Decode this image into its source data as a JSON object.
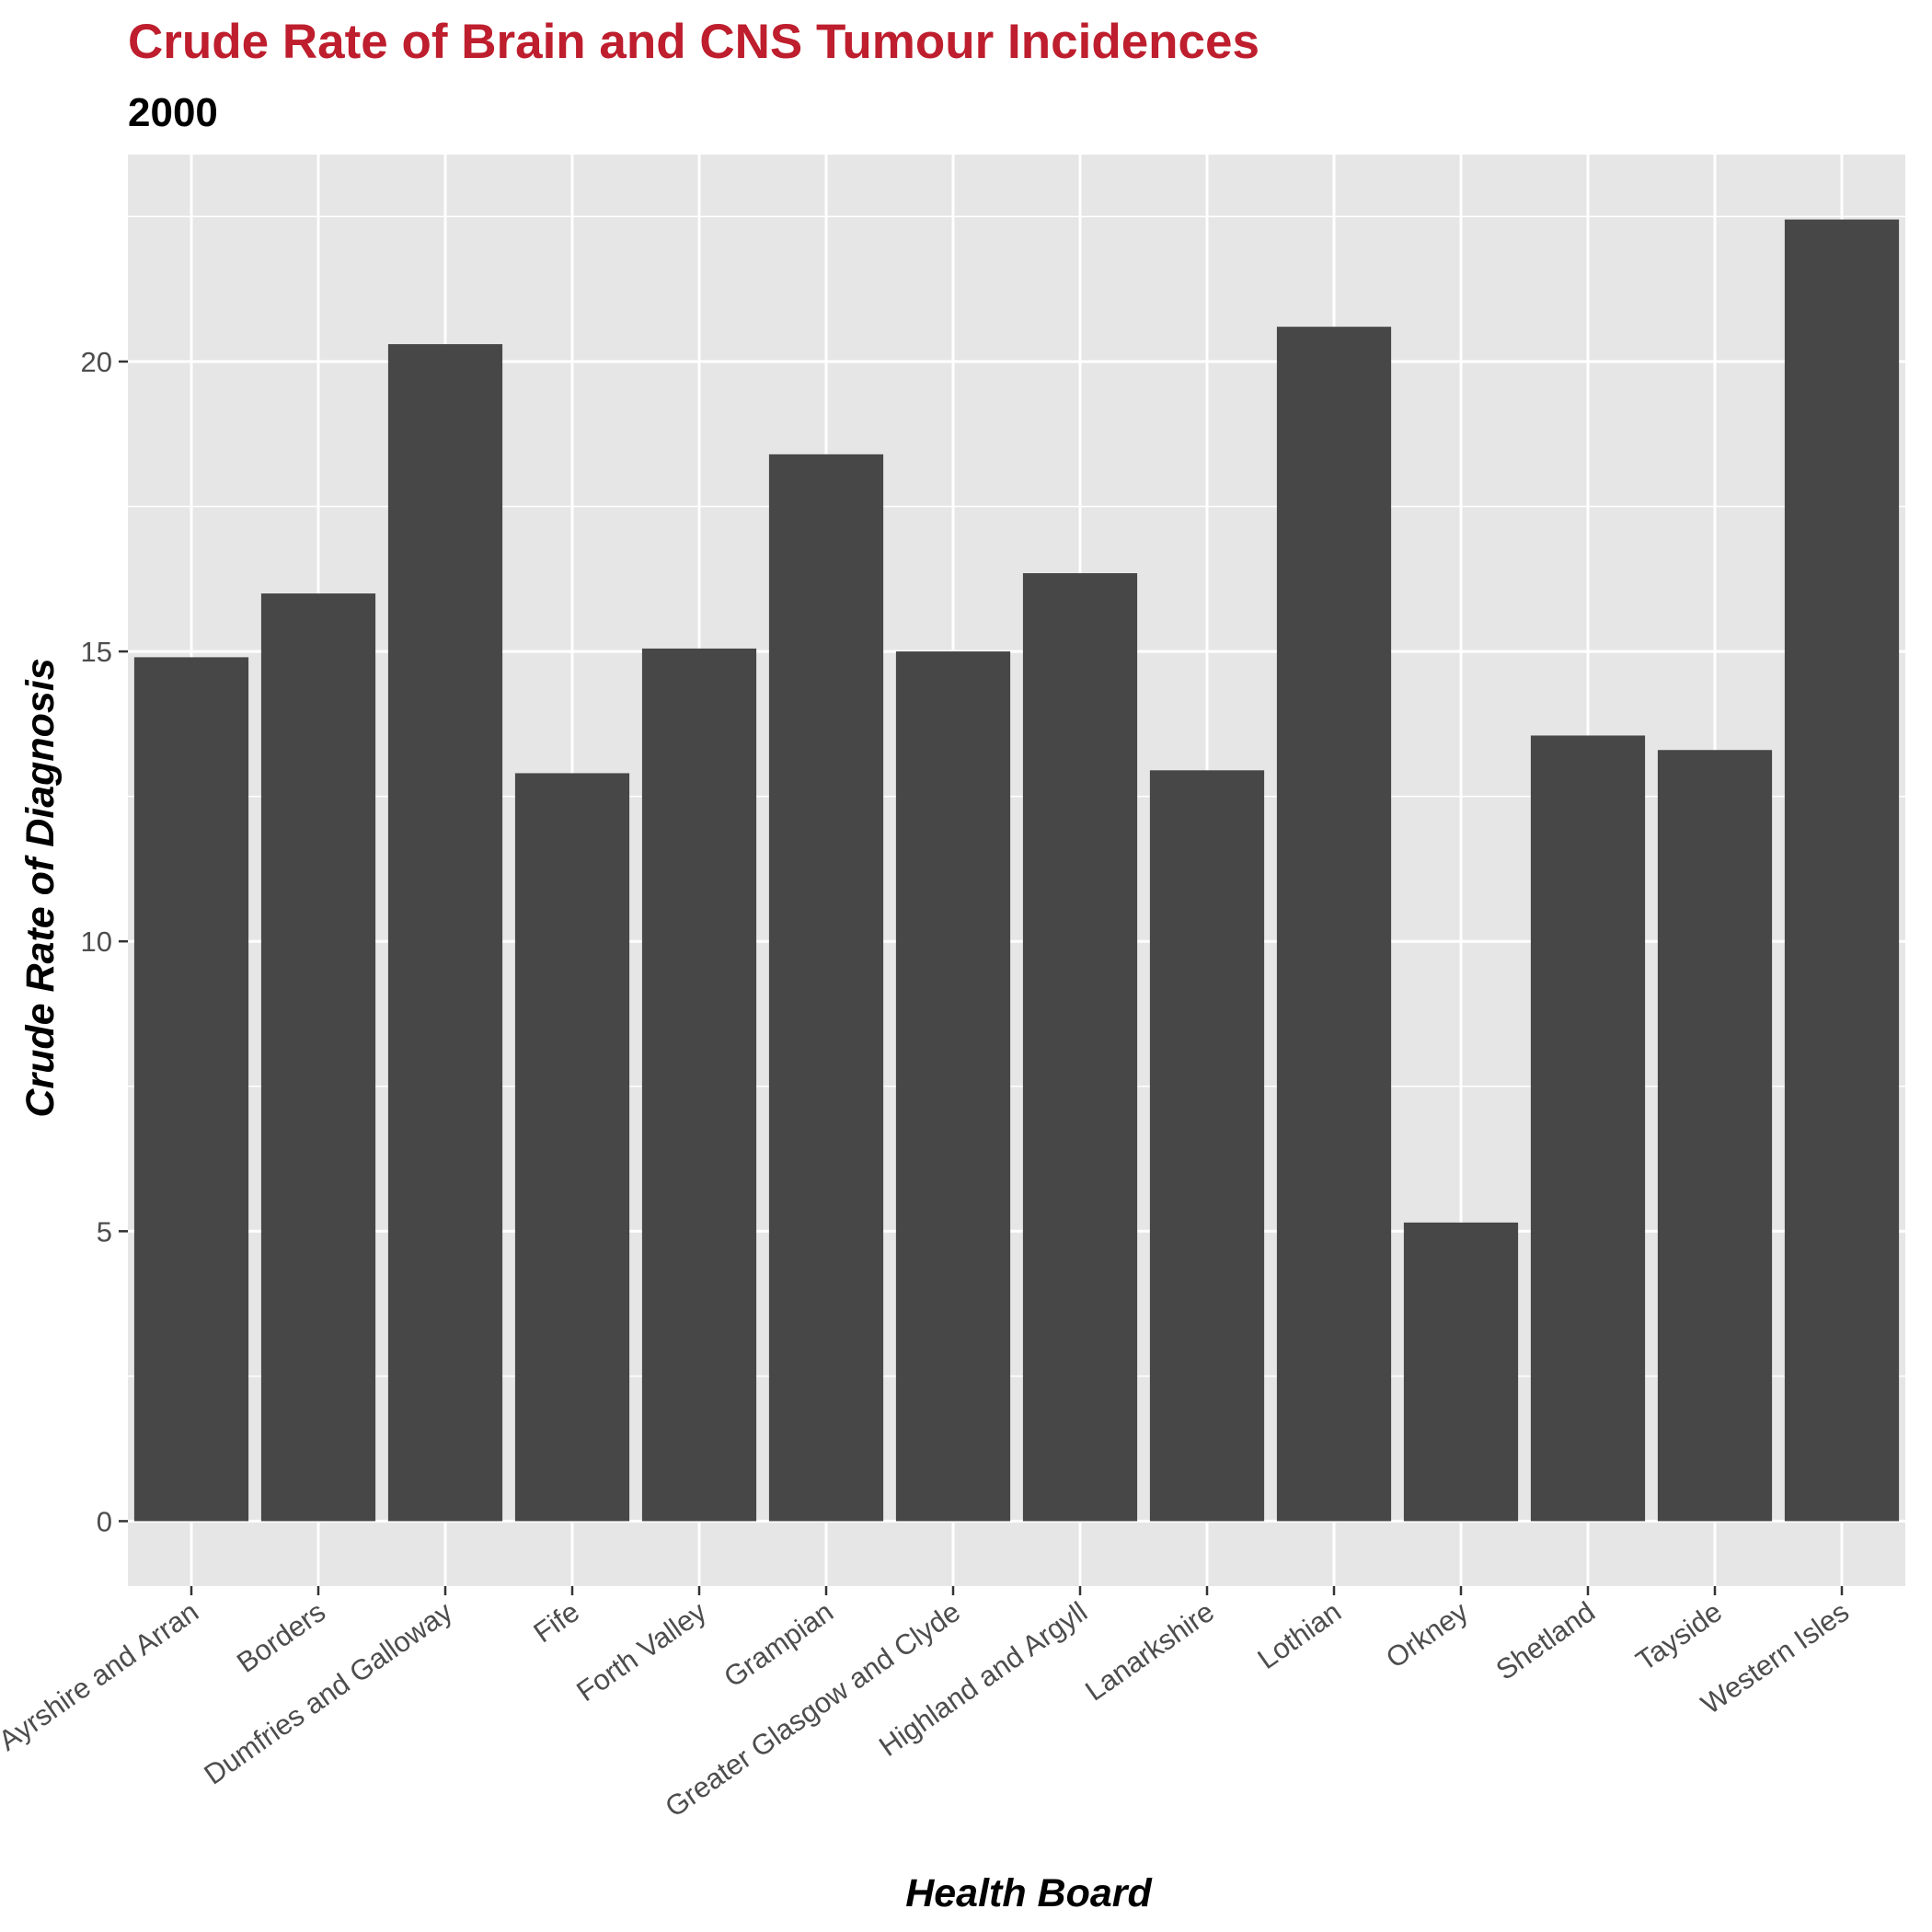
{
  "chart_data": {
    "type": "bar",
    "title": "Crude Rate of Brain and CNS Tumour Incidences",
    "subtitle": "2000",
    "xlabel": "Health Board",
    "ylabel": "Crude Rate of Diagnosis",
    "categories": [
      "Ayrshire and Arran",
      "Borders",
      "Dumfries and Galloway",
      "Fife",
      "Forth Valley",
      "Grampian",
      "Greater Glasgow and Clyde",
      "Highland and Argyll",
      "Lanarkshire",
      "Lothian",
      "Orkney",
      "Shetland",
      "Tayside",
      "Western Isles"
    ],
    "values": [
      14.9,
      16.0,
      20.3,
      12.9,
      15.05,
      18.4,
      15.0,
      16.35,
      12.95,
      20.6,
      5.15,
      13.55,
      13.3,
      22.45
    ],
    "ylim": [
      -1.12,
      23.57
    ],
    "yticks": [
      0,
      5,
      10,
      15,
      20
    ],
    "grid": true,
    "legend": "none",
    "colors": {
      "bar": "#474747",
      "panel": "#e6e6e6",
      "grid": "#ffffff",
      "title": "#be1e2d",
      "tick": "#333333"
    }
  }
}
